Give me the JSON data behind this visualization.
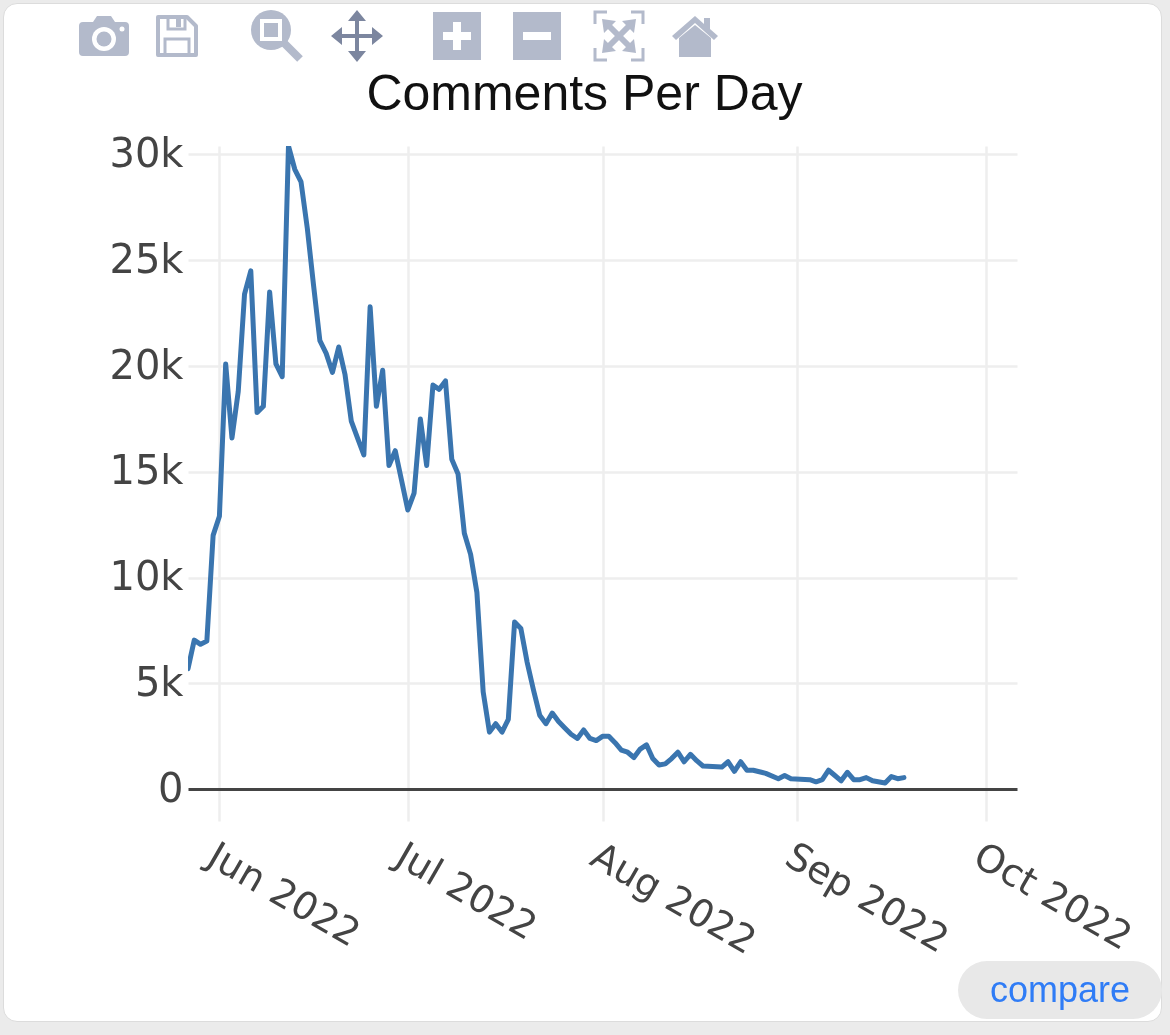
{
  "chart_data": {
    "type": "line",
    "title": "Comments Per Day",
    "x": [
      "2022-05-27",
      "2022-05-28",
      "2022-05-29",
      "2022-05-30",
      "2022-05-31",
      "2022-06-01",
      "2022-06-02",
      "2022-06-03",
      "2022-06-04",
      "2022-06-05",
      "2022-06-06",
      "2022-06-07",
      "2022-06-08",
      "2022-06-09",
      "2022-06-10",
      "2022-06-11",
      "2022-06-12",
      "2022-06-13",
      "2022-06-14",
      "2022-06-15",
      "2022-06-16",
      "2022-06-17",
      "2022-06-18",
      "2022-06-19",
      "2022-06-20",
      "2022-06-21",
      "2022-06-22",
      "2022-06-23",
      "2022-06-24",
      "2022-06-25",
      "2022-06-26",
      "2022-06-27",
      "2022-06-28",
      "2022-06-29",
      "2022-06-30",
      "2022-07-01",
      "2022-07-02",
      "2022-07-03",
      "2022-07-04",
      "2022-07-05",
      "2022-07-06",
      "2022-07-07",
      "2022-07-08",
      "2022-07-09",
      "2022-07-10",
      "2022-07-11",
      "2022-07-12",
      "2022-07-13",
      "2022-07-14",
      "2022-07-15",
      "2022-07-16",
      "2022-07-17",
      "2022-07-18",
      "2022-07-19",
      "2022-07-20",
      "2022-07-21",
      "2022-07-22",
      "2022-07-23",
      "2022-07-24",
      "2022-07-25",
      "2022-07-26",
      "2022-07-27",
      "2022-07-28",
      "2022-07-29",
      "2022-07-30",
      "2022-07-31",
      "2022-08-01",
      "2022-08-02",
      "2022-08-03",
      "2022-08-04",
      "2022-08-05",
      "2022-08-06",
      "2022-08-07",
      "2022-08-08",
      "2022-08-09",
      "2022-08-10",
      "2022-08-11",
      "2022-08-12",
      "2022-08-13",
      "2022-08-14",
      "2022-08-15",
      "2022-08-16",
      "2022-08-17",
      "2022-08-20",
      "2022-08-21",
      "2022-08-22",
      "2022-08-23",
      "2022-08-24",
      "2022-08-25",
      "2022-08-27",
      "2022-08-29",
      "2022-08-30",
      "2022-08-31",
      "2022-09-03",
      "2022-09-04",
      "2022-09-05",
      "2022-09-06",
      "2022-09-07",
      "2022-09-08",
      "2022-09-09",
      "2022-09-10",
      "2022-09-11",
      "2022-09-12",
      "2022-09-13",
      "2022-09-15",
      "2022-09-16",
      "2022-09-17",
      "2022-09-18"
    ],
    "series": [
      {
        "color": "#3a75af",
        "values": [
          5700,
          7050,
          6850,
          7000,
          12000,
          12900,
          20100,
          16600,
          18800,
          23400,
          24500,
          17800,
          18100,
          23500,
          20100,
          19500,
          30400,
          29300,
          28700,
          26500,
          23800,
          21200,
          20600,
          19700,
          20900,
          19600,
          17400,
          16600,
          15800,
          22800,
          18100,
          19800,
          15300,
          16000,
          14600,
          13200,
          14000,
          17500,
          15300,
          19100,
          18900,
          19300,
          15600,
          14900,
          12100,
          11100,
          9300,
          4600,
          2700,
          3100,
          2700,
          3300,
          7900,
          7600,
          6000,
          4700,
          3500,
          3100,
          3600,
          3200,
          2900,
          2600,
          2400,
          2800,
          2400,
          2300,
          2500,
          2500,
          2200,
          1850,
          1750,
          1500,
          1900,
          2100,
          1450,
          1150,
          1200,
          1450,
          1750,
          1300,
          1650,
          1350,
          1100,
          1050,
          1300,
          850,
          1300,
          900,
          900,
          750,
          500,
          650,
          500,
          450,
          350,
          450,
          900,
          650,
          400,
          800,
          450,
          450,
          550,
          400,
          300,
          600,
          500,
          550
        ]
      }
    ],
    "xlim": [
      "2022-05-27",
      "2022-10-06"
    ],
    "xticks": [
      {
        "value": "2022-06-01",
        "label": "Jun 2022"
      },
      {
        "value": "2022-07-01",
        "label": "Jul 2022"
      },
      {
        "value": "2022-08-01",
        "label": "Aug 2022"
      },
      {
        "value": "2022-09-01",
        "label": "Sep 2022"
      },
      {
        "value": "2022-10-01",
        "label": "Oct 2022"
      }
    ],
    "ylim": [
      -1500,
      30400
    ],
    "yticks": [
      0,
      {
        "value": 5000,
        "label": "5k"
      },
      {
        "value": 10000,
        "label": "10k"
      },
      {
        "value": 15000,
        "label": "15k"
      },
      {
        "value": 20000,
        "label": "20k"
      },
      {
        "value": 25000,
        "label": "25k"
      },
      {
        "value": 30000,
        "label": "30k"
      }
    ],
    "grid": true,
    "line_style": "solid",
    "annotations": [
      "compare"
    ]
  }
}
